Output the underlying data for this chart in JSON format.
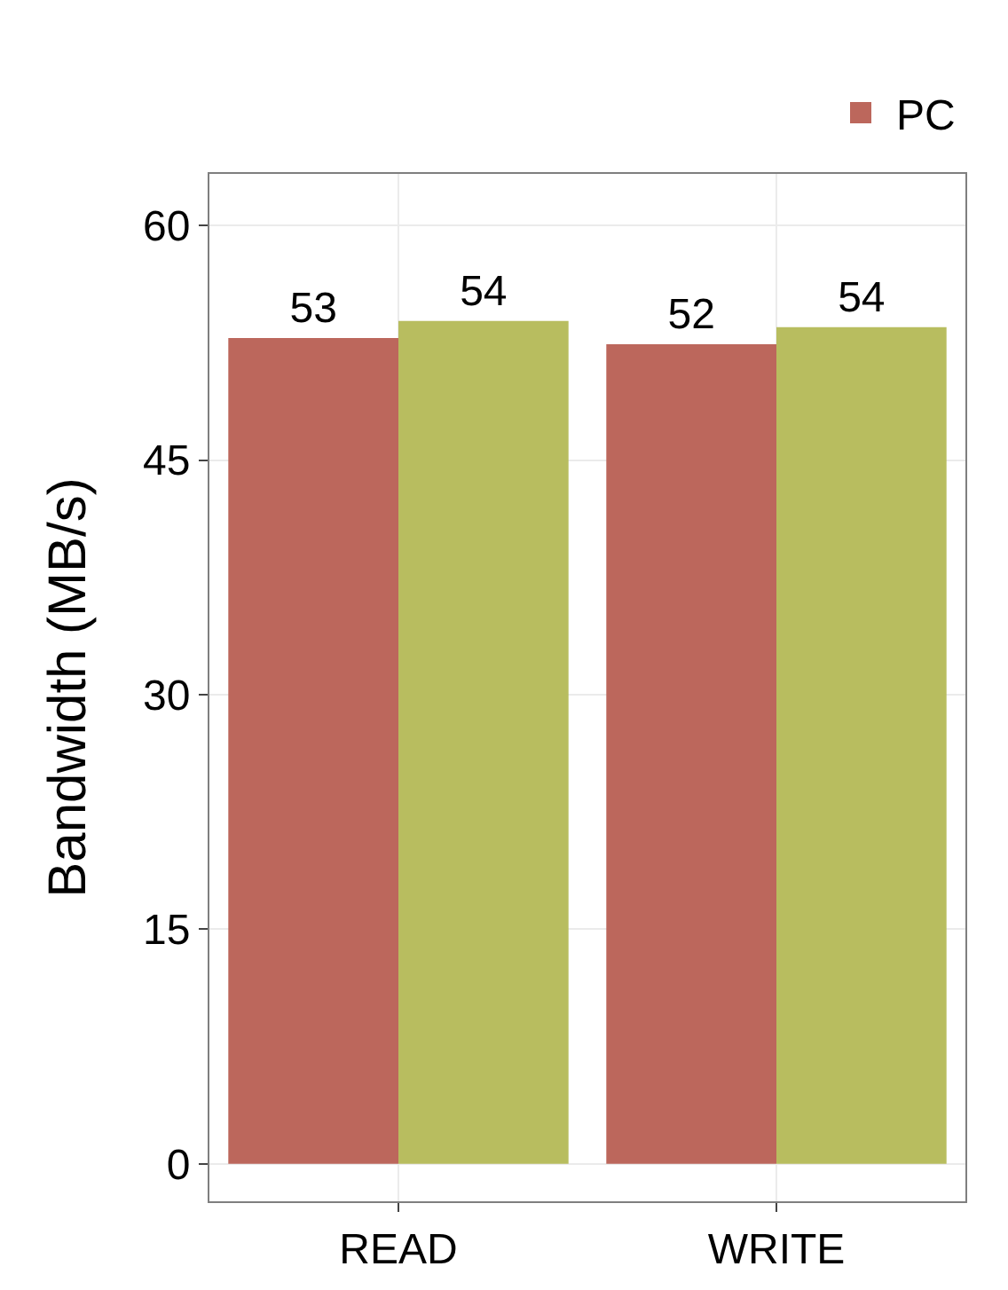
{
  "chart_data": {
    "type": "bar",
    "ylabel": "Bandwidth (MB/s)",
    "categories": [
      "READ",
      "WRITE"
    ],
    "series": [
      {
        "name": "PC",
        "color": "#bc675c",
        "values": [
          52.8,
          52.4
        ],
        "value_labels": [
          "53",
          "52"
        ]
      },
      {
        "color": "#b8bd5f",
        "values": [
          53.9,
          53.5
        ],
        "value_labels": [
          "54",
          "54"
        ]
      }
    ],
    "ylim": [
      -2.4,
      63.3
    ],
    "yticks": [
      0,
      15,
      30,
      45,
      60
    ],
    "grid": true,
    "legend": "top right"
  }
}
